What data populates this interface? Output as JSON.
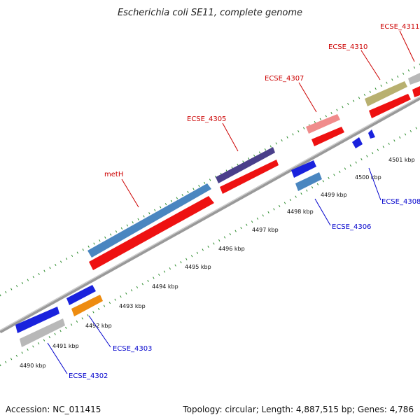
{
  "title": "Escherichia coli SE11, complete genome",
  "footer": {
    "accession": "Accession: NC_011415",
    "summary": "Topology: circular; Length: 4,887,515 bp; Genes: 4,786"
  },
  "ticks": [
    {
      "label": "4490 kbp"
    },
    {
      "label": "4491 kbp"
    },
    {
      "label": "4492 kbp"
    },
    {
      "label": "4493 kbp"
    },
    {
      "label": "4494 kbp"
    },
    {
      "label": "4495 kbp"
    },
    {
      "label": "4496 kbp"
    },
    {
      "label": "4497 kbp"
    },
    {
      "label": "4498 kbp"
    },
    {
      "label": "4499 kbp"
    },
    {
      "label": "4500 kbp"
    },
    {
      "label": "4501 kbp"
    }
  ],
  "gene_labels": [
    {
      "name": "ECSE_4302"
    },
    {
      "name": "ECSE_4303"
    },
    {
      "name": "metH"
    },
    {
      "name": "ECSE_4305"
    },
    {
      "name": "ECSE_4306"
    },
    {
      "name": "ECSE_4307"
    },
    {
      "name": "ECSE_4308"
    },
    {
      "name": "ECSE_4310"
    },
    {
      "name": "ECSE_4311"
    }
  ],
  "colors": {
    "backbone": "#888888",
    "tick": "#2a8a2a",
    "red": "#ee1111",
    "blue": "#1a22dd",
    "steelblue": "#4a86c0",
    "darkslate": "#4a3f8a",
    "gray": "#b8b8b8",
    "orange": "#ee8c10",
    "pink": "#f08c8c",
    "khaki": "#b8b070"
  }
}
